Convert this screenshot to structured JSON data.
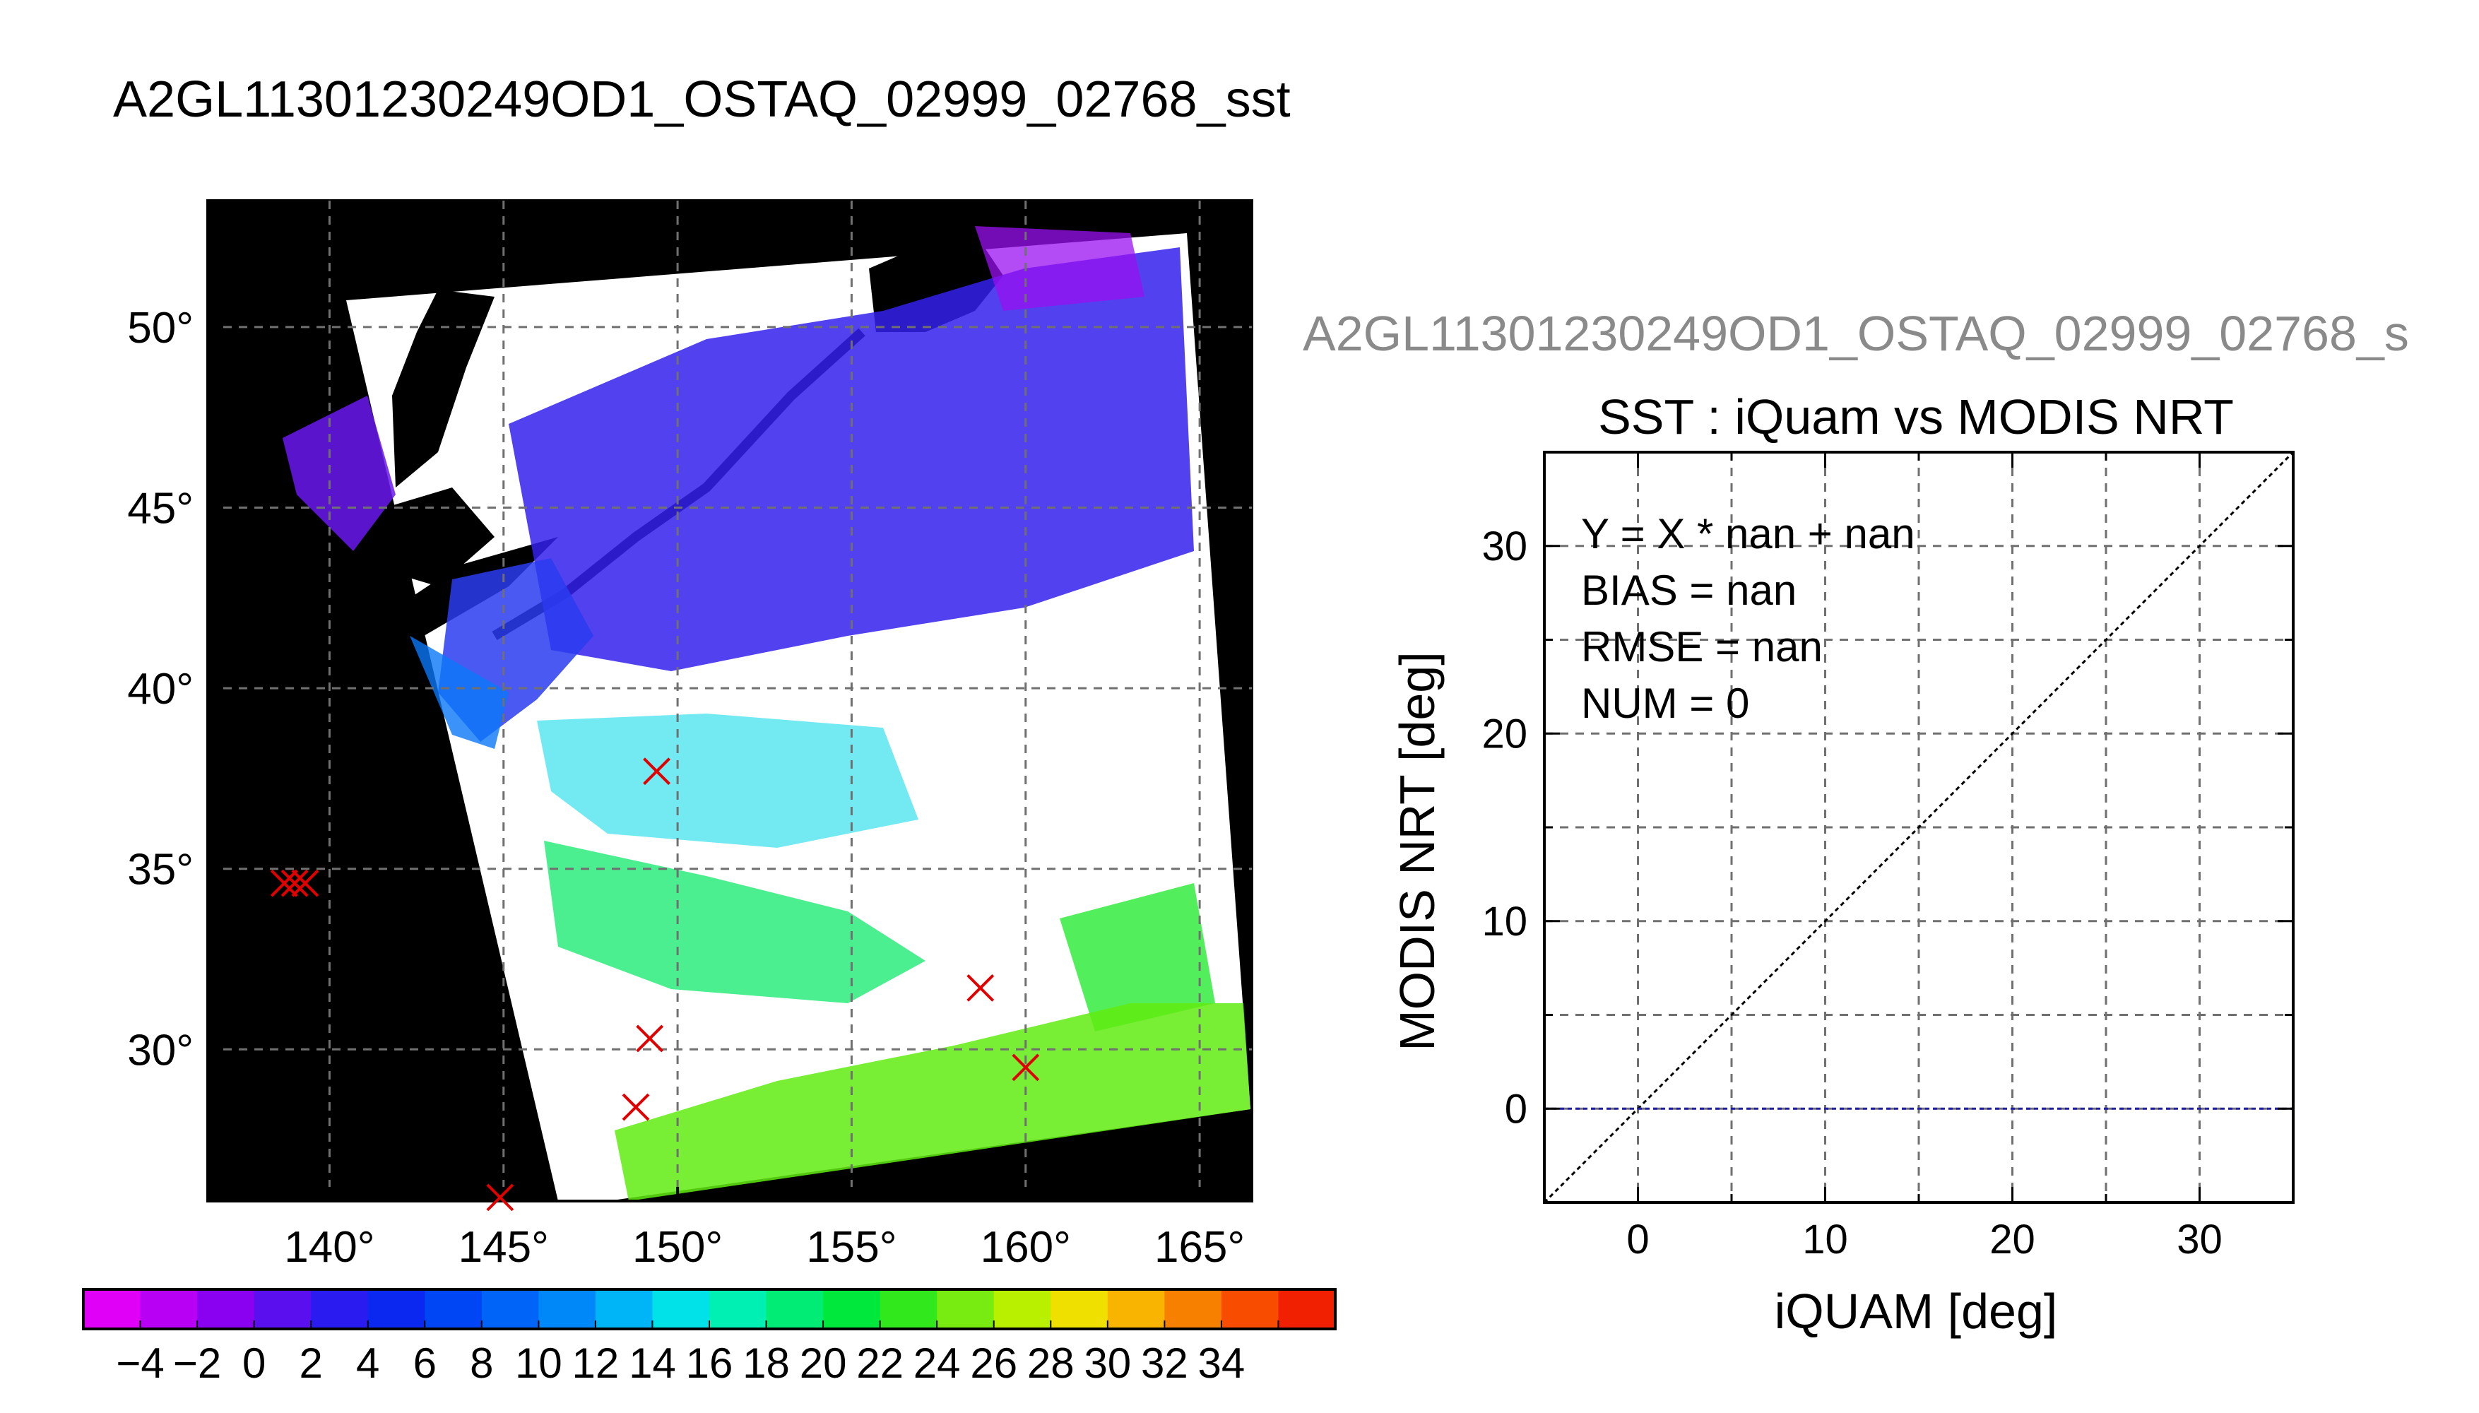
{
  "page_title": "A2GL11301230249OD1_OSTAQ_02999_02768_sst",
  "colors": {
    "land": "#000000",
    "cloud": "#ffffff",
    "marker": "#e00000",
    "grid": "#707070",
    "zero_line": "#1e1ea8"
  },
  "chart_data": [
    {
      "type": "heatmap",
      "title": "",
      "x_ticks": [
        "140°",
        "145°",
        "150°",
        "155°",
        "160°",
        "165°"
      ],
      "x_values": [
        140,
        145,
        150,
        155,
        160,
        165
      ],
      "y_ticks": [
        "50°",
        "45°",
        "40°",
        "35°",
        "30°"
      ],
      "y_values": [
        50,
        45,
        40,
        35,
        30
      ],
      "xlim": [
        136.5,
        166.5
      ],
      "ylim": [
        25.8,
        53.5
      ],
      "grid": true,
      "matchup_points": [
        {
          "lon": 138.7,
          "lat": 34.6
        },
        {
          "lon": 139.0,
          "lat": 34.6
        },
        {
          "lon": 139.3,
          "lat": 34.6
        },
        {
          "lon": 149.4,
          "lat": 37.7
        },
        {
          "lon": 158.7,
          "lat": 31.7
        },
        {
          "lon": 149.2,
          "lat": 30.3
        },
        {
          "lon": 160.0,
          "lat": 29.5
        },
        {
          "lon": 148.8,
          "lat": 28.4
        },
        {
          "lon": 144.9,
          "lat": 25.9
        }
      ],
      "colorbar": {
        "tick_labels": [
          "−4",
          "−2",
          "0",
          "2",
          "4",
          "6",
          "8",
          "10",
          "12",
          "14",
          "16",
          "18",
          "20",
          "22",
          "24",
          "26",
          "28",
          "30",
          "32",
          "34"
        ],
        "colors": [
          "#e000f8",
          "#b800f4",
          "#8a00f0",
          "#5a10ee",
          "#2a1cf0",
          "#0a28f0",
          "#0046f4",
          "#0064f8",
          "#0088f8",
          "#00b4f8",
          "#00e2e8",
          "#00f0b4",
          "#00ec74",
          "#00e83c",
          "#30e81c",
          "#78ec10",
          "#b8f000",
          "#f0e000",
          "#f8b400",
          "#f88000",
          "#f84c00",
          "#f02000"
        ]
      }
    },
    {
      "type": "scatter",
      "header": "A2GL11301230249OD1_OSTAQ_02999_02768_s",
      "title": "SST : iQuam vs MODIS NRT",
      "xlabel": "iQUAM [deg]",
      "ylabel": "MODIS NRT [deg]",
      "xlim": [
        -5,
        35
      ],
      "ylim": [
        -5,
        35
      ],
      "x_ticks": [
        "0",
        "10",
        "20",
        "30"
      ],
      "x_tick_values": [
        0,
        10,
        20,
        30
      ],
      "y_ticks": [
        "0",
        "10",
        "20",
        "30"
      ],
      "y_tick_values": [
        0,
        10,
        20,
        30
      ],
      "grid": true,
      "points": [],
      "reference_lines": [
        {
          "kind": "one-to-one",
          "x": [
            -5,
            35
          ],
          "y": [
            -5,
            35
          ]
        },
        {
          "kind": "y-zero",
          "x": [
            -5,
            35
          ],
          "y": [
            0,
            0
          ]
        }
      ],
      "stats": [
        "Y = X * nan + nan",
        "BIAS = nan",
        "RMSE = nan",
        "NUM = 0"
      ]
    }
  ]
}
